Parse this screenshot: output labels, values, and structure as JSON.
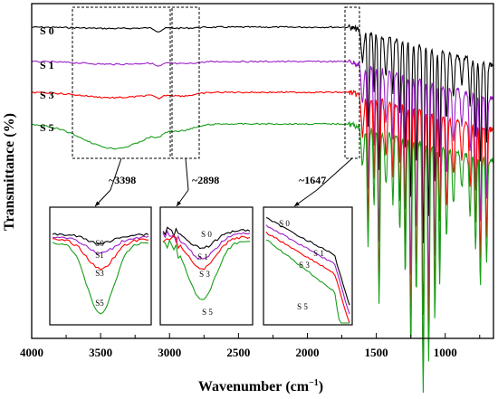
{
  "chart_data": {
    "type": "line",
    "title": "",
    "xlabel": "Wavenumber",
    "xlabel_unit": "(cm",
    "xlabel_sup": "−1",
    "xlabel_close": ")",
    "ylabel": "Transmittance (%)",
    "xlim": [
      4000,
      650
    ],
    "x_reversed": true,
    "x_ticks": [
      "4000",
      "3500",
      "3000",
      "2500",
      "2000",
      "1500",
      "1000"
    ],
    "grid": false,
    "legend": "inline labels at left",
    "series": [
      {
        "name": "S 0",
        "color": "#000000"
      },
      {
        "name": "S 1",
        "color": "#9b1fc8"
      },
      {
        "name": "S 3",
        "color": "#ff0000"
      },
      {
        "name": "S 5",
        "color": "#1a9e1a"
      }
    ],
    "annotations": [
      {
        "text": "~3398",
        "x": 3398
      },
      {
        "text": "~2898",
        "x": 2898
      },
      {
        "text": "~1647",
        "x": 1647
      }
    ],
    "insets": [
      {
        "region": "~3398",
        "labels": [
          "S0",
          "S1",
          "S3",
          "S5"
        ]
      },
      {
        "region": "~2898",
        "labels": [
          "S 0",
          "S 1",
          "S 3",
          "S 5"
        ]
      },
      {
        "region": "~1647",
        "labels": [
          "S 0",
          "S 1",
          "S 3",
          "S 5"
        ]
      }
    ]
  }
}
